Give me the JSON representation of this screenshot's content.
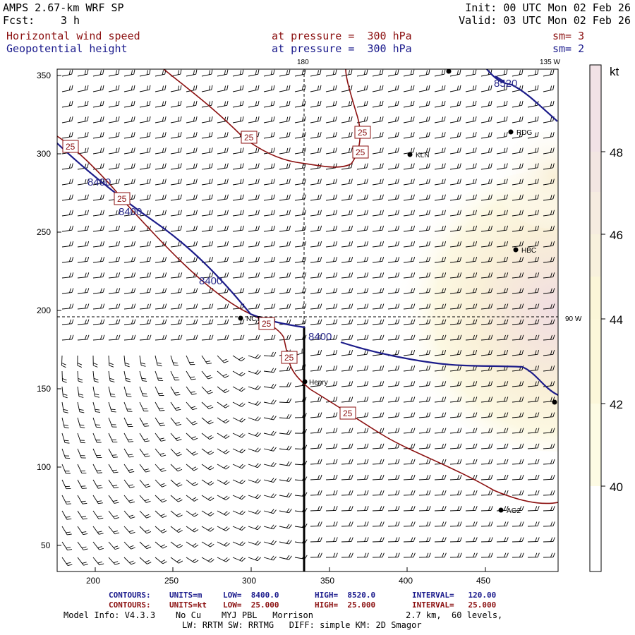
{
  "header": {
    "model": "AMPS 2.67-km WRF SP",
    "forecast_label": "Fcst:",
    "forecast_value": "3 h",
    "init": "Init: 00 UTC Mon 02 Feb 26",
    "valid": "Valid: 03 UTC Mon 02 Feb 26",
    "field1_name": "Horizontal wind speed",
    "field1_level": "at pressure =  300 hPa",
    "field1_sm": "sm= 3",
    "field2_name": "Geopotential height",
    "field2_level": "at pressure =  300 hPa",
    "field2_sm": "sm= 2"
  },
  "map": {
    "x_ticks": [
      "200",
      "250",
      "300",
      "350",
      "400",
      "450"
    ],
    "y_ticks": [
      "350",
      "300",
      "250",
      "200",
      "150",
      "100",
      "50"
    ],
    "longitude_labels": [
      "180",
      "135 W",
      "90 W"
    ],
    "height_contour_labels": [
      "8400",
      "8400",
      "8400",
      "8400",
      "8520"
    ],
    "speed_contour_labels": [
      "25",
      "25",
      "25",
      "25",
      "25",
      "25",
      "25",
      "25"
    ],
    "stations": [
      "KLN",
      "RDG",
      "HBC",
      "NCT",
      "Henry",
      "AG2"
    ],
    "colors": {
      "height_contour": "#1c1c8a",
      "speed_contour": "#8b1010",
      "barb": "#000000"
    }
  },
  "colorbar": {
    "unit": "kt",
    "ticks": [
      "48",
      "46",
      "44",
      "42",
      "40"
    ],
    "colors": [
      "#f2e2e6",
      "#f3e6e2",
      "#f6ece0",
      "#f8f1dd",
      "#fbf6d8",
      "#fdfbe4",
      "#ffffff"
    ]
  },
  "footer": {
    "line1_label": "CONTOURS:",
    "line1_units": "UNITS=m",
    "line1_low": "LOW=  8400.0",
    "line1_high": "HIGH=  8520.0",
    "line1_interval": "INTERVAL=   120.00",
    "line2_label": "CONTOURS:",
    "line2_units": "UNITS=kt",
    "line2_low": "LOW=  25.000",
    "line2_high": "HIGH=  25.000",
    "line2_interval": "INTERVAL=   25.000",
    "model_info": "Model Info: V4.3.3    No Cu    MYJ PBL   Morrison",
    "resolution": "2.7 km,  60 levels,",
    "physics": "LW: RRTM SW: RRTMG   DIFF: simple KM: 2D Smagor"
  }
}
